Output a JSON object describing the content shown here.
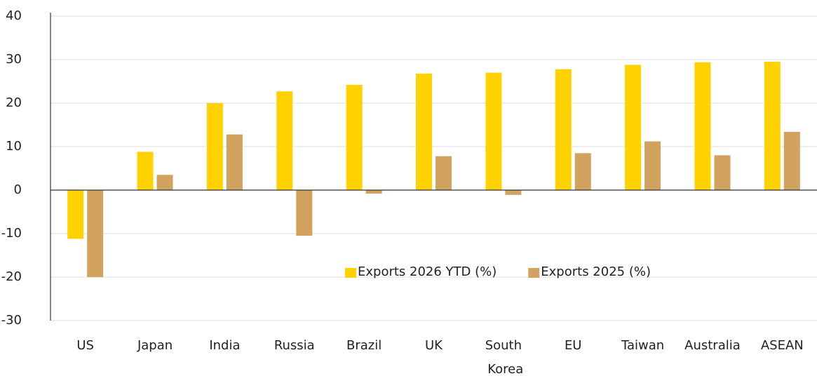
{
  "chart_data": {
    "type": "bar",
    "categories": [
      "US",
      "Japan",
      "India",
      "Russia",
      "Brazil",
      "UK",
      "South Korea",
      "EU",
      "Taiwan",
      "Australia",
      "ASEAN"
    ],
    "series": [
      {
        "name": "Exports 2026 YTD (%)",
        "color": "#ffd200",
        "values": [
          -11.2,
          8.8,
          20,
          22.7,
          24.2,
          26.8,
          27,
          27.8,
          28.8,
          29.4,
          29.5
        ]
      },
      {
        "name": "Exports 2025 (%)",
        "color": "#d2a35f",
        "values": [
          -20,
          3.5,
          12.8,
          -10.5,
          -0.8,
          7.8,
          -1.1,
          8.5,
          11.2,
          8,
          13.4
        ]
      }
    ],
    "ylim": [
      -30,
      40
    ],
    "yticks": [
      -30,
      -20,
      -10,
      0,
      10,
      20,
      30,
      40
    ],
    "grid": true,
    "legend": "center"
  }
}
